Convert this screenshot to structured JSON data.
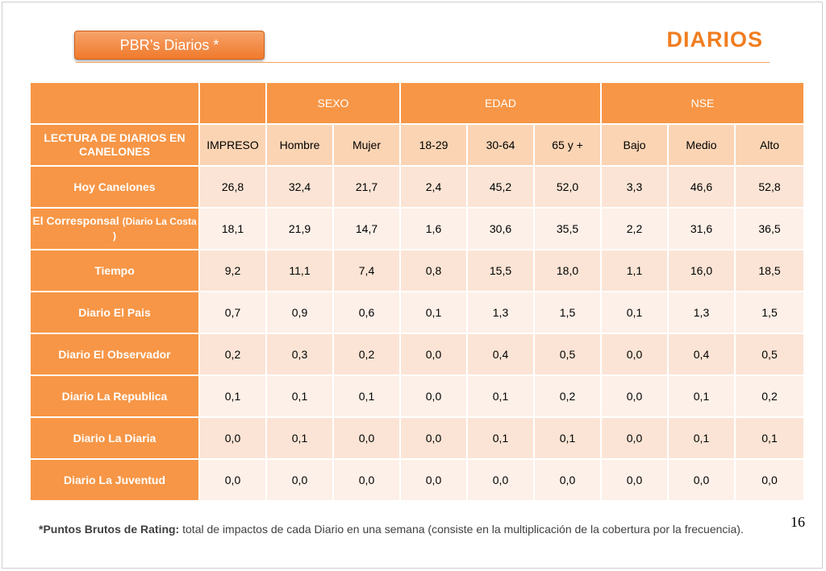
{
  "header": {
    "tag_label": "PBR’s Diarios  *",
    "title": "DIARIOS"
  },
  "table": {
    "groups": {
      "sexo": "SEXO",
      "edad": "EDAD",
      "nse": "NSE"
    },
    "corner_label": "LECTURA DE DIARIOS EN CANELONES",
    "columns": [
      "IMPRESO",
      "Hombre",
      "Mujer",
      "18-29",
      "30-64",
      "65 y +",
      "Bajo",
      "Medio",
      "Alto"
    ],
    "rows": [
      {
        "label": "Hoy Canelones",
        "note": "",
        "values": [
          "26,8",
          "32,4",
          "21,7",
          "2,4",
          "45,2",
          "52,0",
          "3,3",
          "46,6",
          "52,8"
        ]
      },
      {
        "label": "El Corresponsal",
        "note": "(Diario La Costa )",
        "values": [
          "18,1",
          "21,9",
          "14,7",
          "1,6",
          "30,6",
          "35,5",
          "2,2",
          "31,6",
          "36,5"
        ]
      },
      {
        "label": "Tiempo",
        "note": "",
        "values": [
          "9,2",
          "11,1",
          "7,4",
          "0,8",
          "15,5",
          "18,0",
          "1,1",
          "16,0",
          "18,5"
        ]
      },
      {
        "label": "Diario El Pais",
        "note": "",
        "values": [
          "0,7",
          "0,9",
          "0,6",
          "0,1",
          "1,3",
          "1,5",
          "0,1",
          "1,3",
          "1,5"
        ]
      },
      {
        "label": "Diario El Observador",
        "note": "",
        "values": [
          "0,2",
          "0,3",
          "0,2",
          "0,0",
          "0,4",
          "0,5",
          "0,0",
          "0,4",
          "0,5"
        ]
      },
      {
        "label": "Diario La Republica",
        "note": "",
        "values": [
          "0,1",
          "0,1",
          "0,1",
          "0,0",
          "0,1",
          "0,2",
          "0,0",
          "0,1",
          "0,2"
        ]
      },
      {
        "label": "Diario La Diaria",
        "note": "",
        "values": [
          "0,0",
          "0,1",
          "0,0",
          "0,0",
          "0,1",
          "0,1",
          "0,0",
          "0,1",
          "0,1"
        ]
      },
      {
        "label": "Diario La Juventud",
        "note": "",
        "values": [
          "0,0",
          "0,0",
          "0,0",
          "0,0",
          "0,0",
          "0,0",
          "0,0",
          "0,0",
          "0,0"
        ]
      }
    ]
  },
  "footer": {
    "page_number": "16",
    "note_bold": "*Puntos Brutos de Rating:",
    "note_text": " total de impactos de cada Diario en una semana (consiste en la multiplicación de la cobertura por la frecuencia)."
  },
  "colors": {
    "accent": "#f79646",
    "light": "#fbe4d5",
    "title": "#f07d20"
  }
}
